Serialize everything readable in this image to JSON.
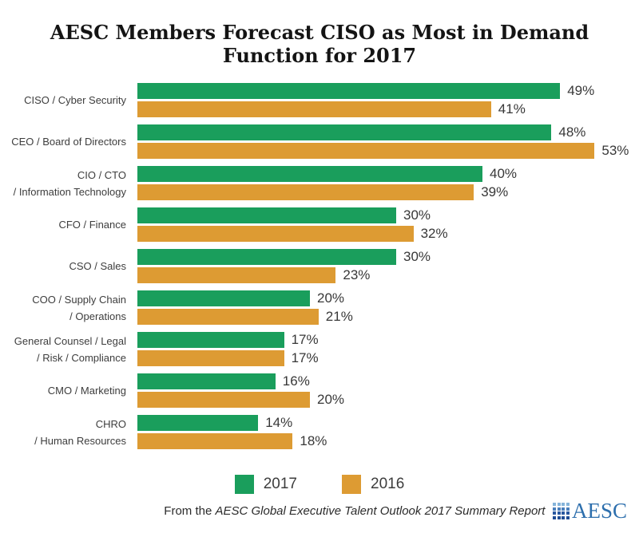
{
  "title": "AESC Members Forecast CISO as Most in Demand Function for 2017",
  "chart_data": {
    "type": "bar",
    "orientation": "horizontal",
    "title": "AESC Members Forecast CISO as Most in Demand Function for 2017",
    "categories": [
      [
        "CISO / Cyber Security"
      ],
      [
        "CEO / Board of Directors"
      ],
      [
        "CIO / CTO",
        "/ Information Technology"
      ],
      [
        "CFO / Finance"
      ],
      [
        "CSO / Sales"
      ],
      [
        "COO / Supply Chain",
        "/ Operations"
      ],
      [
        "General Counsel / Legal",
        "/ Risk / Compliance"
      ],
      [
        "CMO / Marketing"
      ],
      [
        "CHRO",
        "/ Human Resources"
      ]
    ],
    "series": [
      {
        "name": "2017",
        "color": "#1a9e5c",
        "values": [
          49,
          48,
          40,
          30,
          30,
          20,
          17,
          16,
          14
        ]
      },
      {
        "name": "2016",
        "color": "#dd9b33",
        "values": [
          41,
          53,
          39,
          32,
          23,
          21,
          17,
          20,
          18
        ]
      }
    ],
    "value_suffix": "%",
    "xlim": [
      0,
      55
    ],
    "grid": false,
    "legend_position": "bottom"
  },
  "legend": {
    "items": [
      {
        "label": "2017",
        "color": "#1a9e5c"
      },
      {
        "label": "2016",
        "color": "#dd9b33"
      }
    ]
  },
  "footer": {
    "prefix": "From the ",
    "source_italic": "AESC Global Executive Talent Outlook 2017 Summary Report",
    "logo_text": "AESC",
    "logo_text_color": "#2d6fad",
    "logo_grid_row_colors": [
      "#85b4da",
      "#4a7fbc",
      "#2a58a0",
      "#1f4c94"
    ]
  }
}
